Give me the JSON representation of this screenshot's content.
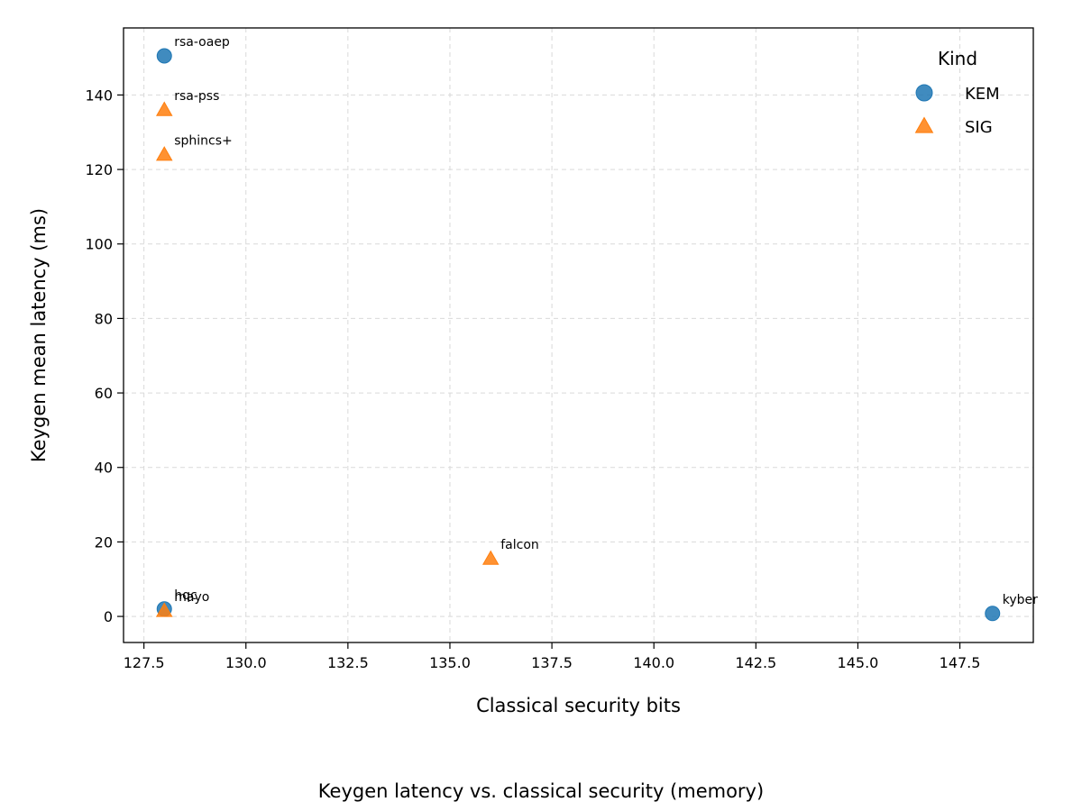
{
  "caption": "Keygen latency vs. classical security (memory)",
  "chart_data": {
    "type": "scatter",
    "xlabel": "Classical security bits",
    "ylabel": "Keygen mean latency (ms)",
    "xlim": [
      127.0,
      149.3
    ],
    "ylim": [
      -7,
      158
    ],
    "xticks": [
      127.5,
      130.0,
      132.5,
      135.0,
      137.5,
      140.0,
      142.5,
      145.0,
      147.5
    ],
    "xtick_labels": [
      "127.5",
      "130.0",
      "132.5",
      "135.0",
      "137.5",
      "140.0",
      "142.5",
      "145.0",
      "147.5"
    ],
    "yticks": [
      0,
      20,
      40,
      60,
      80,
      100,
      120,
      140
    ],
    "ytick_labels": [
      "0",
      "20",
      "40",
      "60",
      "80",
      "100",
      "120",
      "140"
    ],
    "grid": true,
    "legend": {
      "title": "Kind",
      "placement": "top-right"
    },
    "series": [
      {
        "name": "KEM",
        "marker": "circle",
        "color": "#1f77b4",
        "points": [
          {
            "label": "rsa-oaep",
            "x": 128,
            "y": 150.5
          },
          {
            "label": "hqc",
            "x": 128,
            "y": 2.0
          },
          {
            "label": "kyber",
            "x": 148.3,
            "y": 0.8
          }
        ]
      },
      {
        "name": "SIG",
        "marker": "triangle",
        "color": "#ff7f0e",
        "points": [
          {
            "label": "rsa-pss",
            "x": 128,
            "y": 136.0
          },
          {
            "label": "sphincs+",
            "x": 128,
            "y": 124.0
          },
          {
            "label": "mayo",
            "x": 128,
            "y": 1.5
          },
          {
            "label": "falcon",
            "x": 136,
            "y": 15.5
          }
        ]
      }
    ]
  }
}
